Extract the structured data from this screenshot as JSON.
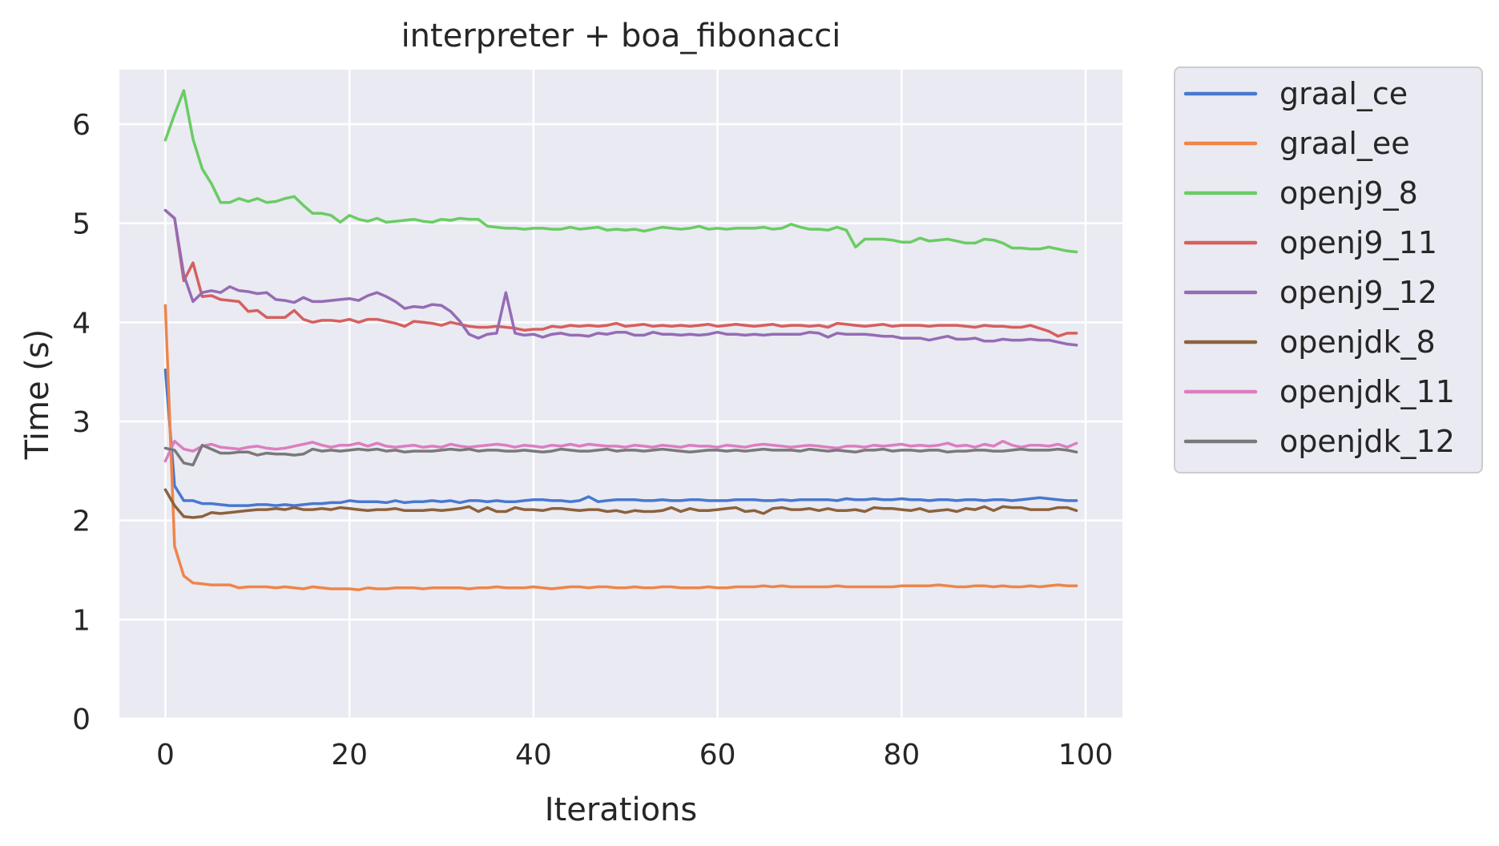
{
  "chart_data": {
    "type": "line",
    "title": "interpreter + boa_fibonacci",
    "xlabel": "Iterations",
    "ylabel": "Time (s)",
    "xlim": [
      -5,
      104
    ],
    "ylim": [
      0,
      6.55
    ],
    "xticks": [
      0,
      20,
      40,
      60,
      80,
      100
    ],
    "yticks": [
      0,
      1,
      2,
      3,
      4,
      5,
      6
    ],
    "grid": true,
    "legend_position": "outside-right-top",
    "background": "#eaeaf2",
    "series": [
      {
        "name": "graal_ce",
        "color": "#4878d0",
        "values": [
          3.52,
          2.35,
          2.2,
          2.2,
          2.17,
          2.17,
          2.16,
          2.15,
          2.15,
          2.15,
          2.16,
          2.16,
          2.15,
          2.16,
          2.15,
          2.16,
          2.17,
          2.17,
          2.18,
          2.18,
          2.2,
          2.19,
          2.19,
          2.19,
          2.18,
          2.2,
          2.18,
          2.19,
          2.19,
          2.2,
          2.19,
          2.2,
          2.18,
          2.2,
          2.2,
          2.19,
          2.2,
          2.19,
          2.19,
          2.2,
          2.21,
          2.21,
          2.2,
          2.2,
          2.19,
          2.2,
          2.24,
          2.19,
          2.2,
          2.21,
          2.21,
          2.21,
          2.2,
          2.2,
          2.21,
          2.2,
          2.2,
          2.21,
          2.21,
          2.2,
          2.2,
          2.2,
          2.21,
          2.21,
          2.21,
          2.2,
          2.2,
          2.21,
          2.2,
          2.21,
          2.21,
          2.21,
          2.21,
          2.2,
          2.22,
          2.21,
          2.21,
          2.22,
          2.21,
          2.21,
          2.22,
          2.21,
          2.21,
          2.2,
          2.21,
          2.21,
          2.2,
          2.21,
          2.21,
          2.2,
          2.21,
          2.21,
          2.2,
          2.21,
          2.22,
          2.23,
          2.22,
          2.21,
          2.2,
          2.2
        ]
      },
      {
        "name": "graal_ee",
        "color": "#ee854a",
        "values": [
          4.17,
          1.74,
          1.44,
          1.37,
          1.36,
          1.35,
          1.35,
          1.35,
          1.32,
          1.33,
          1.33,
          1.33,
          1.32,
          1.33,
          1.32,
          1.31,
          1.33,
          1.32,
          1.31,
          1.31,
          1.31,
          1.3,
          1.32,
          1.31,
          1.31,
          1.32,
          1.32,
          1.32,
          1.31,
          1.32,
          1.32,
          1.32,
          1.32,
          1.31,
          1.32,
          1.32,
          1.33,
          1.32,
          1.32,
          1.32,
          1.33,
          1.32,
          1.31,
          1.32,
          1.33,
          1.33,
          1.32,
          1.33,
          1.33,
          1.32,
          1.32,
          1.33,
          1.32,
          1.32,
          1.33,
          1.33,
          1.32,
          1.32,
          1.32,
          1.33,
          1.32,
          1.32,
          1.33,
          1.33,
          1.33,
          1.34,
          1.33,
          1.34,
          1.33,
          1.33,
          1.33,
          1.33,
          1.33,
          1.34,
          1.33,
          1.33,
          1.33,
          1.33,
          1.33,
          1.33,
          1.34,
          1.34,
          1.34,
          1.34,
          1.35,
          1.34,
          1.33,
          1.33,
          1.34,
          1.34,
          1.33,
          1.34,
          1.33,
          1.33,
          1.34,
          1.33,
          1.34,
          1.35,
          1.34,
          1.34
        ]
      },
      {
        "name": "openj9_8",
        "color": "#6acc64",
        "values": [
          5.84,
          6.1,
          6.34,
          5.85,
          5.55,
          5.4,
          5.21,
          5.21,
          5.25,
          5.22,
          5.25,
          5.21,
          5.22,
          5.25,
          5.27,
          5.18,
          5.1,
          5.1,
          5.08,
          5.01,
          5.08,
          5.04,
          5.02,
          5.05,
          5.01,
          5.02,
          5.03,
          5.04,
          5.02,
          5.01,
          5.04,
          5.03,
          5.05,
          5.04,
          5.04,
          4.97,
          4.96,
          4.95,
          4.95,
          4.94,
          4.95,
          4.95,
          4.94,
          4.94,
          4.96,
          4.94,
          4.95,
          4.96,
          4.93,
          4.94,
          4.93,
          4.94,
          4.92,
          4.94,
          4.96,
          4.95,
          4.94,
          4.95,
          4.97,
          4.94,
          4.95,
          4.94,
          4.95,
          4.95,
          4.95,
          4.96,
          4.94,
          4.95,
          4.99,
          4.96,
          4.94,
          4.94,
          4.93,
          4.96,
          4.93,
          4.76,
          4.84,
          4.84,
          4.84,
          4.83,
          4.81,
          4.81,
          4.85,
          4.82,
          4.83,
          4.84,
          4.82,
          4.8,
          4.8,
          4.84,
          4.83,
          4.8,
          4.75,
          4.75,
          4.74,
          4.74,
          4.76,
          4.74,
          4.72,
          4.71
        ]
      },
      {
        "name": "openj9_11",
        "color": "#d65f5f",
        "values": [
          5.13,
          5.05,
          4.42,
          4.6,
          4.26,
          4.27,
          4.23,
          4.22,
          4.21,
          4.11,
          4.12,
          4.05,
          4.05,
          4.05,
          4.12,
          4.03,
          4.0,
          4.02,
          4.02,
          4.01,
          4.03,
          4.0,
          4.03,
          4.03,
          4.01,
          3.99,
          3.96,
          4.01,
          4.0,
          3.99,
          3.97,
          4.0,
          3.98,
          3.96,
          3.95,
          3.95,
          3.96,
          3.95,
          3.94,
          3.92,
          3.93,
          3.93,
          3.96,
          3.95,
          3.97,
          3.96,
          3.97,
          3.96,
          3.97,
          3.99,
          3.96,
          3.97,
          3.98,
          3.96,
          3.97,
          3.96,
          3.97,
          3.96,
          3.97,
          3.98,
          3.96,
          3.97,
          3.98,
          3.97,
          3.96,
          3.97,
          3.98,
          3.96,
          3.97,
          3.97,
          3.96,
          3.97,
          3.95,
          3.99,
          3.98,
          3.97,
          3.96,
          3.97,
          3.98,
          3.96,
          3.97,
          3.97,
          3.97,
          3.96,
          3.97,
          3.97,
          3.97,
          3.96,
          3.95,
          3.97,
          3.96,
          3.96,
          3.95,
          3.95,
          3.97,
          3.94,
          3.91,
          3.86,
          3.89,
          3.89
        ]
      },
      {
        "name": "openj9_12",
        "color": "#956cb4",
        "values": [
          5.13,
          5.05,
          4.48,
          4.21,
          4.3,
          4.32,
          4.3,
          4.36,
          4.32,
          4.31,
          4.29,
          4.3,
          4.23,
          4.22,
          4.2,
          4.25,
          4.21,
          4.21,
          4.22,
          4.23,
          4.24,
          4.22,
          4.27,
          4.3,
          4.26,
          4.21,
          4.14,
          4.16,
          4.15,
          4.18,
          4.17,
          4.11,
          4.01,
          3.88,
          3.84,
          3.88,
          3.89,
          4.3,
          3.89,
          3.87,
          3.88,
          3.85,
          3.88,
          3.89,
          3.87,
          3.87,
          3.86,
          3.89,
          3.88,
          3.9,
          3.9,
          3.87,
          3.87,
          3.9,
          3.88,
          3.88,
          3.87,
          3.88,
          3.87,
          3.88,
          3.9,
          3.88,
          3.88,
          3.87,
          3.88,
          3.87,
          3.88,
          3.88,
          3.88,
          3.88,
          3.9,
          3.89,
          3.85,
          3.89,
          3.88,
          3.88,
          3.88,
          3.87,
          3.86,
          3.86,
          3.84,
          3.84,
          3.84,
          3.82,
          3.84,
          3.86,
          3.83,
          3.83,
          3.84,
          3.81,
          3.81,
          3.83,
          3.82,
          3.82,
          3.83,
          3.82,
          3.82,
          3.8,
          3.78,
          3.77
        ]
      },
      {
        "name": "openjdk_8",
        "color": "#8c613c",
        "values": [
          2.31,
          2.15,
          2.04,
          2.03,
          2.04,
          2.08,
          2.07,
          2.08,
          2.09,
          2.1,
          2.11,
          2.11,
          2.12,
          2.11,
          2.13,
          2.11,
          2.11,
          2.12,
          2.11,
          2.13,
          2.12,
          2.11,
          2.1,
          2.11,
          2.11,
          2.12,
          2.1,
          2.1,
          2.1,
          2.11,
          2.1,
          2.11,
          2.12,
          2.14,
          2.09,
          2.13,
          2.09,
          2.09,
          2.13,
          2.11,
          2.11,
          2.1,
          2.12,
          2.12,
          2.11,
          2.1,
          2.11,
          2.11,
          2.09,
          2.1,
          2.08,
          2.1,
          2.09,
          2.09,
          2.1,
          2.13,
          2.09,
          2.12,
          2.1,
          2.1,
          2.11,
          2.12,
          2.13,
          2.09,
          2.1,
          2.07,
          2.12,
          2.13,
          2.11,
          2.11,
          2.12,
          2.1,
          2.12,
          2.1,
          2.1,
          2.11,
          2.09,
          2.13,
          2.12,
          2.12,
          2.11,
          2.1,
          2.12,
          2.09,
          2.1,
          2.11,
          2.09,
          2.12,
          2.11,
          2.14,
          2.1,
          2.14,
          2.13,
          2.13,
          2.11,
          2.11,
          2.11,
          2.13,
          2.13,
          2.1
        ]
      },
      {
        "name": "openjdk_11",
        "color": "#dc7ec0",
        "values": [
          2.6,
          2.8,
          2.72,
          2.7,
          2.75,
          2.77,
          2.74,
          2.73,
          2.72,
          2.74,
          2.75,
          2.73,
          2.72,
          2.73,
          2.75,
          2.77,
          2.79,
          2.76,
          2.74,
          2.76,
          2.76,
          2.78,
          2.75,
          2.78,
          2.75,
          2.74,
          2.75,
          2.76,
          2.74,
          2.75,
          2.74,
          2.77,
          2.75,
          2.74,
          2.75,
          2.76,
          2.77,
          2.76,
          2.74,
          2.76,
          2.75,
          2.74,
          2.76,
          2.75,
          2.77,
          2.75,
          2.77,
          2.76,
          2.75,
          2.75,
          2.74,
          2.76,
          2.75,
          2.74,
          2.76,
          2.75,
          2.74,
          2.76,
          2.75,
          2.75,
          2.74,
          2.76,
          2.75,
          2.74,
          2.76,
          2.77,
          2.76,
          2.75,
          2.74,
          2.75,
          2.76,
          2.75,
          2.74,
          2.73,
          2.75,
          2.75,
          2.74,
          2.76,
          2.75,
          2.76,
          2.77,
          2.75,
          2.76,
          2.75,
          2.76,
          2.78,
          2.75,
          2.76,
          2.74,
          2.77,
          2.75,
          2.8,
          2.76,
          2.74,
          2.76,
          2.76,
          2.75,
          2.77,
          2.74,
          2.78
        ]
      },
      {
        "name": "openjdk_12",
        "color": "#797979",
        "values": [
          2.73,
          2.71,
          2.58,
          2.56,
          2.76,
          2.72,
          2.68,
          2.68,
          2.69,
          2.69,
          2.66,
          2.68,
          2.67,
          2.67,
          2.66,
          2.67,
          2.72,
          2.7,
          2.71,
          2.7,
          2.71,
          2.72,
          2.71,
          2.72,
          2.7,
          2.71,
          2.69,
          2.7,
          2.7,
          2.7,
          2.71,
          2.72,
          2.71,
          2.72,
          2.7,
          2.71,
          2.71,
          2.7,
          2.7,
          2.71,
          2.7,
          2.69,
          2.7,
          2.72,
          2.71,
          2.7,
          2.7,
          2.71,
          2.72,
          2.7,
          2.71,
          2.71,
          2.7,
          2.71,
          2.72,
          2.71,
          2.7,
          2.69,
          2.7,
          2.71,
          2.71,
          2.7,
          2.71,
          2.7,
          2.71,
          2.72,
          2.71,
          2.71,
          2.71,
          2.7,
          2.72,
          2.71,
          2.7,
          2.71,
          2.7,
          2.69,
          2.71,
          2.71,
          2.72,
          2.7,
          2.71,
          2.71,
          2.7,
          2.71,
          2.71,
          2.69,
          2.7,
          2.7,
          2.71,
          2.71,
          2.7,
          2.7,
          2.71,
          2.72,
          2.71,
          2.71,
          2.71,
          2.72,
          2.71,
          2.69
        ]
      }
    ]
  }
}
